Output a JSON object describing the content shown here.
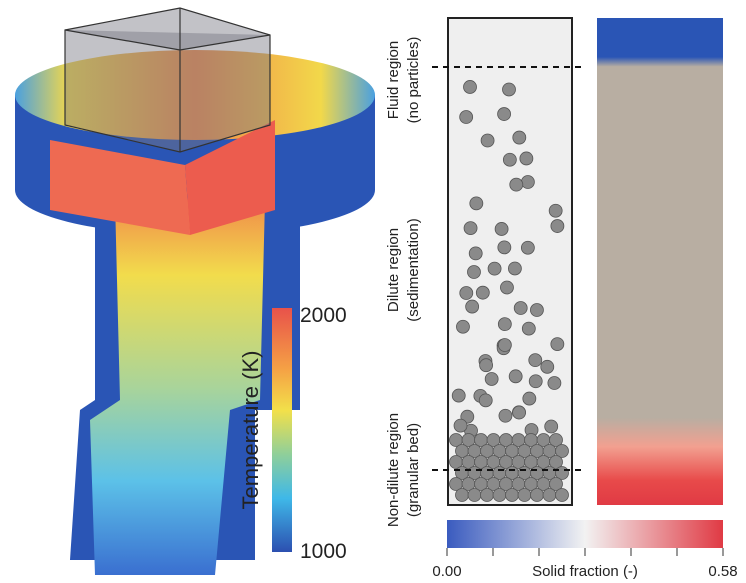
{
  "temperature_colorbar": {
    "label": "Temperature (K)",
    "max_label": "2000",
    "min_label": "1000"
  },
  "regions": [
    {
      "name": "Fluid region",
      "note": "(no particles)"
    },
    {
      "name": "Dilute region",
      "note": "(sedimentation)"
    },
    {
      "name": "Non-dilute region",
      "note": "(granular bed)"
    }
  ],
  "solid_fraction_colorbar": {
    "label": "Solid fraction (-)",
    "min_label": "0.00",
    "max_label": "0.58"
  }
}
